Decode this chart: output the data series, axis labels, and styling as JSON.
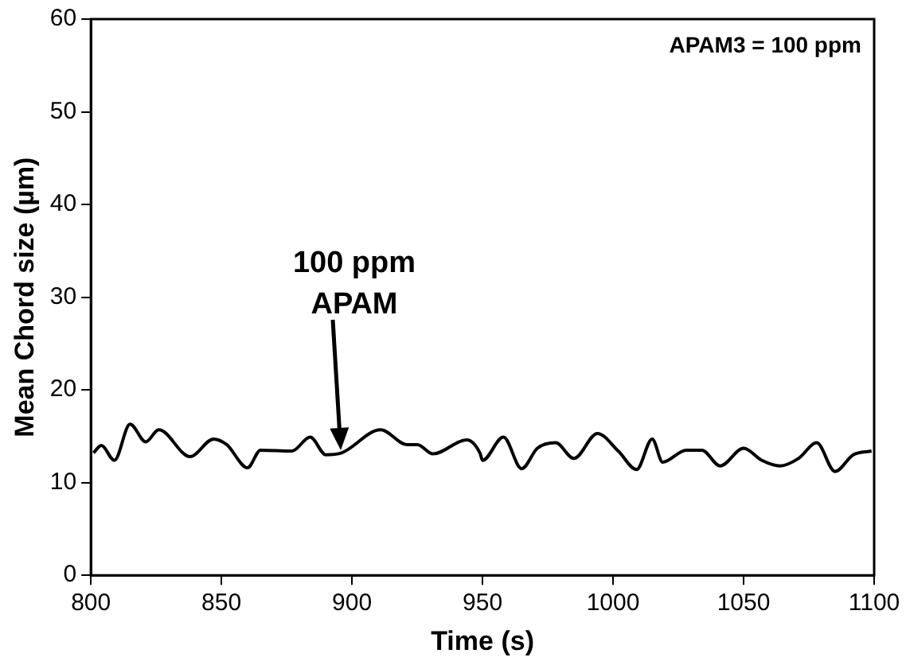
{
  "chart_data": {
    "type": "line",
    "xlabel": "Time (s)",
    "ylabel": "Mean Chord size (µm)",
    "x": [
      801,
      804,
      809,
      815,
      821,
      826,
      838,
      847,
      852,
      860,
      865,
      877,
      884,
      890,
      896,
      911,
      921,
      925,
      931,
      944,
      949,
      950,
      958,
      965,
      971,
      978,
      985,
      994,
      1002,
      1009,
      1015,
      1019,
      1028,
      1034,
      1041,
      1050,
      1057,
      1064,
      1071,
      1078,
      1085,
      1092,
      1099
    ],
    "series": [
      {
        "color": "#000000",
        "values": [
          13.2,
          14.0,
          12.4,
          16.3,
          14.4,
          15.7,
          12.8,
          14.7,
          14.1,
          11.6,
          13.5,
          13.4,
          14.9,
          13.0,
          13.2,
          15.7,
          14.1,
          14.1,
          13.1,
          14.6,
          13.2,
          12.4,
          14.9,
          11.5,
          13.7,
          14.3,
          12.6,
          15.3,
          13.4,
          11.4,
          14.7,
          12.2,
          13.5,
          13.5,
          11.8,
          13.7,
          12.4,
          11.8,
          12.6,
          14.3,
          11.2,
          13.0,
          13.4
        ]
      }
    ],
    "xlim": [
      800,
      1100
    ],
    "xticks": [
      800,
      850,
      900,
      950,
      1000,
      1050,
      1100
    ],
    "ylim": [
      0,
      60
    ],
    "yticks": [
      0,
      10,
      20,
      30,
      40,
      50,
      60
    ],
    "grid": false,
    "legend": false,
    "marker": "none",
    "line_style": "solid",
    "annotations": [
      "100 ppm\nAPAM",
      "APAM3 = 100 ppm"
    ]
  }
}
